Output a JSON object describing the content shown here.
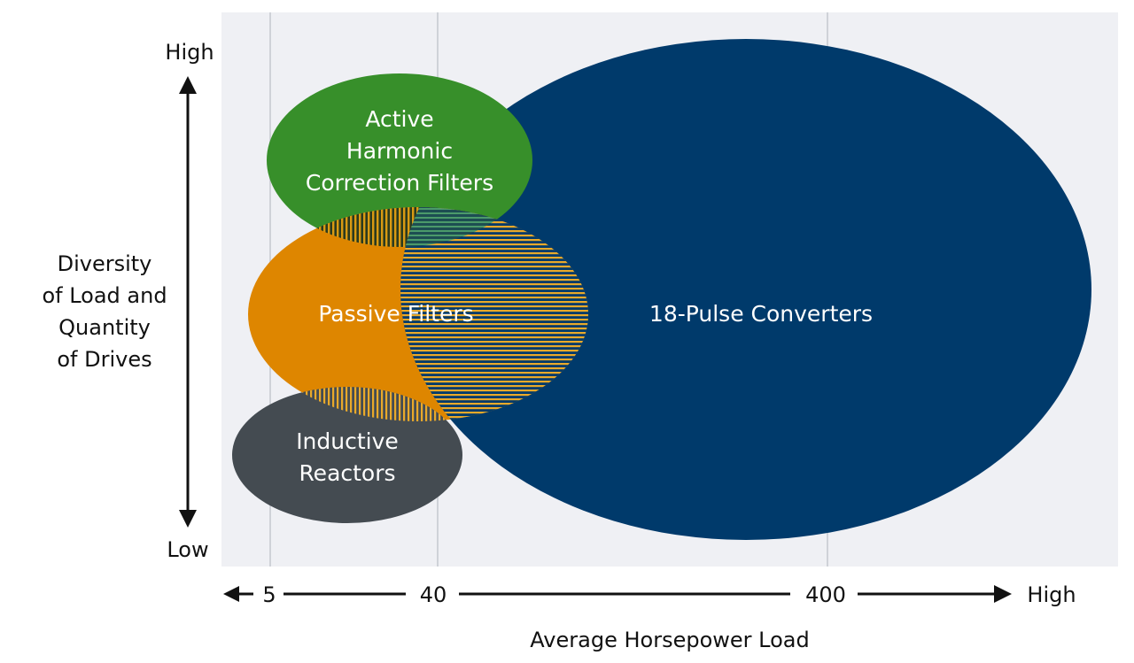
{
  "y_axis": {
    "top_label": "High",
    "bottom_label": "Low",
    "title_lines": [
      "Diversity",
      "of Load and",
      "Quantity",
      "of Drives"
    ]
  },
  "x_axis": {
    "ticks": [
      "5",
      "40",
      "400"
    ],
    "end_label": "High",
    "title": "Average Horsepower Load"
  },
  "regions": {
    "pulse18": {
      "label_lines": [
        "18-Pulse Converters"
      ],
      "color": "#003a6b"
    },
    "active": {
      "label_lines": [
        "Active",
        "Harmonic",
        "Correction Filters"
      ],
      "color": "#378f2a"
    },
    "passive": {
      "label_lines": [
        "Passive Filters"
      ],
      "color": "#de8600"
    },
    "inductive": {
      "label_lines": [
        "Inductive",
        "Reactors"
      ],
      "color": "#444b51"
    }
  },
  "colors": {
    "panel_background": "#eff0f4",
    "gridline": "#cfd2d8",
    "overlap_stripe": "#e9a92a",
    "text_light": "#ffffff",
    "text_dark": "#111111"
  }
}
